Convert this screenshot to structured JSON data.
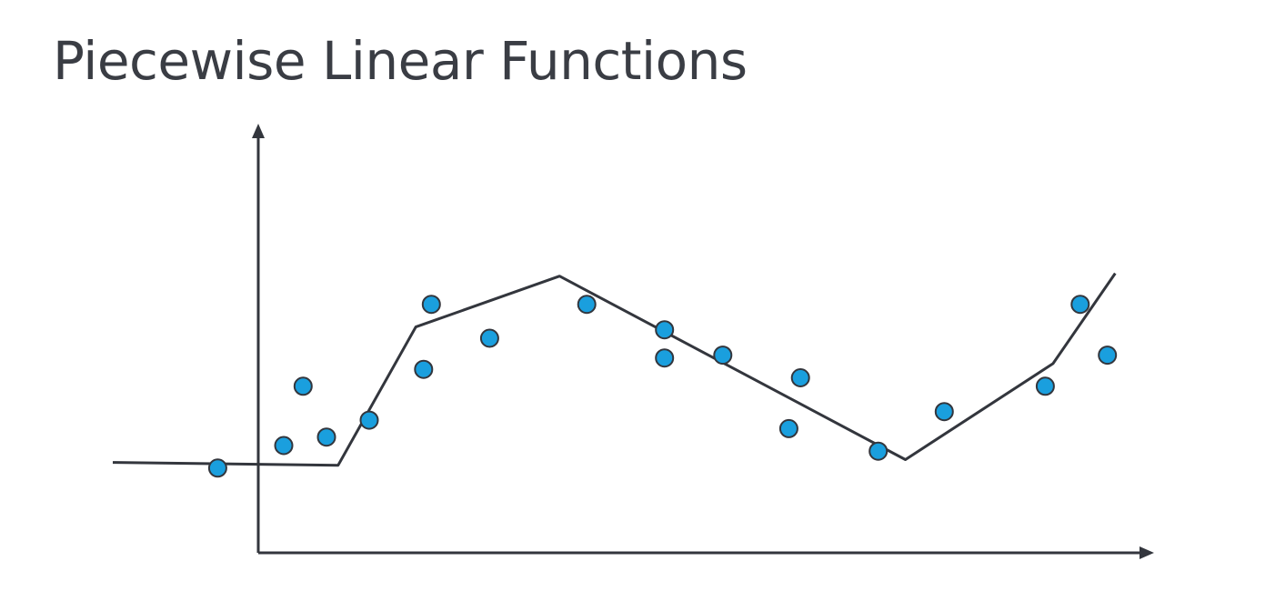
{
  "title": "Piecewise Linear Functions",
  "colors": {
    "point": "#1a9fde",
    "line": "#33363d",
    "text": "#3a3d44"
  },
  "chart_data": {
    "type": "scatter",
    "title": "Piecewise Linear Functions",
    "xlabel": "",
    "ylabel": "",
    "xlim": [
      -1.9,
      11.5
    ],
    "ylim": [
      -1.6,
      6.0
    ],
    "grid": false,
    "points": [
      {
        "x": -0.55,
        "y": -0.1
      },
      {
        "x": 0.3,
        "y": 0.3
      },
      {
        "x": 0.55,
        "y": 1.35
      },
      {
        "x": 0.85,
        "y": 0.45
      },
      {
        "x": 1.4,
        "y": 0.75
      },
      {
        "x": 2.1,
        "y": 1.65
      },
      {
        "x": 2.2,
        "y": 2.8
      },
      {
        "x": 2.95,
        "y": 2.2
      },
      {
        "x": 4.2,
        "y": 2.8
      },
      {
        "x": 5.2,
        "y": 1.85
      },
      {
        "x": 5.2,
        "y": 2.35
      },
      {
        "x": 5.95,
        "y": 1.9
      },
      {
        "x": 6.8,
        "y": 0.6
      },
      {
        "x": 6.95,
        "y": 1.5
      },
      {
        "x": 7.95,
        "y": 0.2
      },
      {
        "x": 8.8,
        "y": 0.9
      },
      {
        "x": 10.1,
        "y": 1.35
      },
      {
        "x": 10.55,
        "y": 2.8
      },
      {
        "x": 10.9,
        "y": 1.9
      }
    ],
    "fit_line": [
      {
        "x": -1.9,
        "y": 0.0
      },
      {
        "x": 1.0,
        "y": -0.05
      },
      {
        "x": 2.0,
        "y": 2.4
      },
      {
        "x": 3.85,
        "y": 3.3
      },
      {
        "x": 8.3,
        "y": 0.05
      },
      {
        "x": 10.2,
        "y": 1.75
      },
      {
        "x": 11.0,
        "y": 3.35
      }
    ]
  }
}
